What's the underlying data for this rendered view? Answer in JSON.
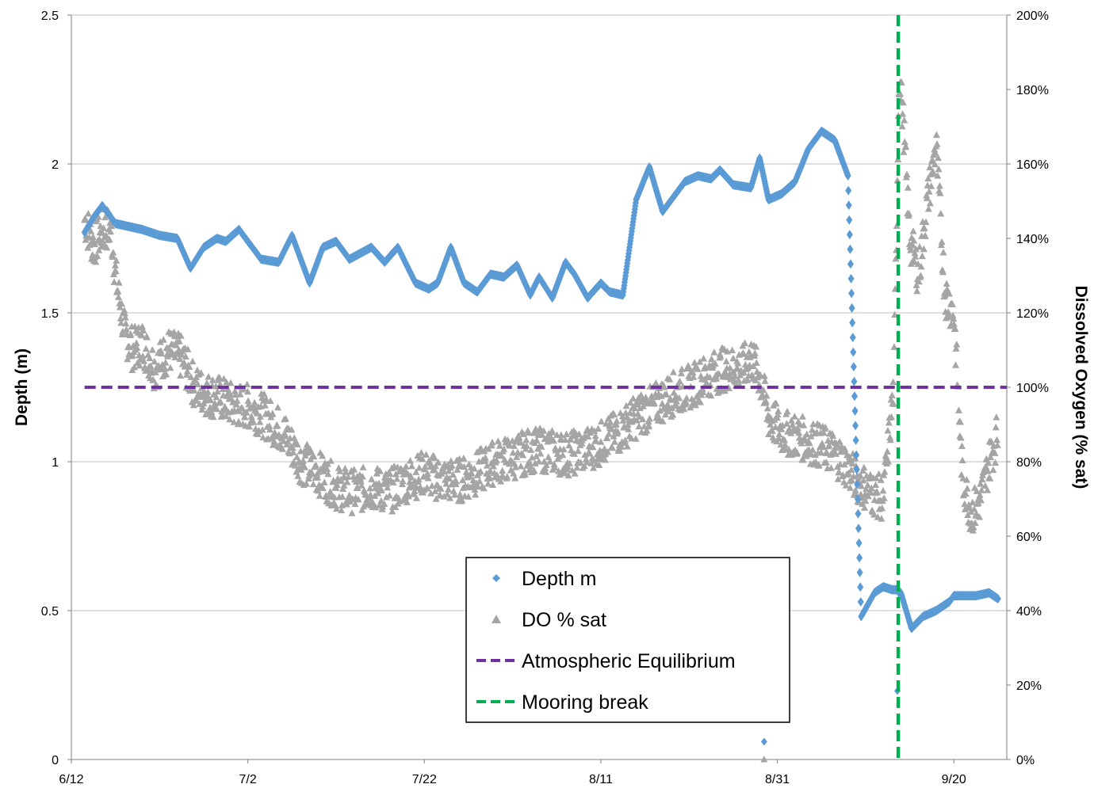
{
  "chart_data": {
    "type": "scatter",
    "xlabel": "",
    "ylabel": "Depth (m)",
    "y2label": "Dissolved Oxygen (% sat)",
    "x_tick_labels": [
      "6/12",
      "7/2",
      "7/22",
      "8/11",
      "8/31",
      "9/20"
    ],
    "x_tick_days": [
      0,
      20,
      40,
      60,
      80,
      100
    ],
    "xlim_days": [
      0,
      106
    ],
    "ylim": [
      0,
      2.5
    ],
    "y_ticks": [
      "0",
      "0.5",
      "1",
      "1.5",
      "2",
      "2.5"
    ],
    "y2lim": [
      0,
      200
    ],
    "y2_ticks": [
      "0%",
      "20%",
      "40%",
      "60%",
      "80%",
      "100%",
      "120%",
      "140%",
      "160%",
      "180%",
      "200%"
    ],
    "grid": "horizontal",
    "legend_position": "center-bottom",
    "colors": {
      "depth": "#5B9BD5",
      "do": "#A5A5A5",
      "equilibrium": "#7030A0",
      "mooring": "#00B050"
    },
    "series": [
      {
        "name": "Depth m",
        "axis": "left",
        "marker": "diamond",
        "x_days": [
          1.5,
          2.5,
          3.5,
          5,
          6.5,
          8,
          10,
          12,
          13.5,
          15,
          16.5,
          17.5,
          19,
          20.5,
          21.5,
          23.5,
          25,
          27,
          28.5,
          30,
          31.5,
          34,
          35.5,
          37,
          39,
          40.5,
          41.5,
          43,
          44.5,
          46,
          47.5,
          49,
          50.5,
          52,
          53,
          54.5,
          56,
          57,
          58.5,
          60,
          61,
          62.5,
          64,
          65.5,
          67,
          67.5,
          68,
          69.5,
          71,
          72.5,
          73.5,
          75,
          77,
          78,
          79,
          80.5,
          82,
          83.5,
          85,
          86.5,
          88,
          89.5,
          91,
          92,
          93,
          94,
          94.6,
          95.2,
          96.5,
          98,
          99.5,
          100,
          101,
          102.5,
          104,
          105
        ],
        "values": [
          1.77,
          1.82,
          1.86,
          1.8,
          1.79,
          1.78,
          1.76,
          1.75,
          1.65,
          1.72,
          1.75,
          1.74,
          1.78,
          1.72,
          1.68,
          1.67,
          1.76,
          1.6,
          1.72,
          1.74,
          1.68,
          1.72,
          1.67,
          1.72,
          1.6,
          1.58,
          1.6,
          1.72,
          1.6,
          1.57,
          1.63,
          1.62,
          1.66,
          1.56,
          1.62,
          1.55,
          1.67,
          1.63,
          1.55,
          1.6,
          1.57,
          1.56,
          1.88,
          1.99,
          1.84,
          1.86,
          1.88,
          1.94,
          1.96,
          1.95,
          1.98,
          1.93,
          1.92,
          2.02,
          1.88,
          1.9,
          1.94,
          2.05,
          2.11,
          2.08,
          1.96,
          0.48,
          0.56,
          0.58,
          0.57,
          0.56,
          0.5,
          0.44,
          0.48,
          0.5,
          0.53,
          0.55,
          0.55,
          0.55,
          0.56,
          0.54
        ],
        "outliers_x_days": [
          78.5,
          93.6
        ],
        "outliers_values": [
          0.06,
          0.23
        ]
      },
      {
        "name": "DO % sat",
        "axis": "right",
        "marker": "triangle",
        "x_days": [
          1.5,
          2.5,
          3.5,
          4.5,
          5,
          6,
          7,
          8,
          9.5,
          11,
          12.5,
          14,
          15.5,
          17,
          18.5,
          20,
          22,
          24,
          26,
          28,
          30,
          32,
          34,
          36,
          38,
          40,
          42,
          44,
          46,
          48,
          50,
          52,
          54,
          56,
          58,
          60,
          62,
          64,
          66,
          68,
          70,
          72,
          74,
          76,
          77,
          78,
          79,
          80.5,
          82,
          84,
          86,
          87.5,
          89,
          90.5,
          92,
          93.2,
          93.8,
          94.3,
          95,
          96,
          97,
          98,
          99,
          100,
          101,
          102,
          103,
          104,
          105
        ],
        "values": [
          145,
          138,
          142,
          143,
          130,
          115,
          110,
          112,
          105,
          110,
          108,
          100,
          98,
          97,
          95,
          95,
          92,
          88,
          80,
          77,
          73,
          72,
          73,
          72,
          75,
          77,
          75,
          75,
          77,
          80,
          81,
          83,
          83,
          82,
          83,
          85,
          88,
          92,
          95,
          98,
          100,
          103,
          105,
          105,
          108,
          103,
          92,
          88,
          87,
          85,
          83,
          80,
          75,
          72,
          70,
          100,
          185,
          170,
          140,
          130,
          150,
          165,
          125,
          120,
          75,
          66,
          70,
          80,
          88
        ],
        "scatter_band": 6,
        "outliers_x_days": [
          78.5
        ],
        "outliers_values": [
          0
        ]
      },
      {
        "name": "Atmospheric Equilibrium",
        "axis": "right",
        "style": "dashed",
        "x_days": [
          1.5,
          106
        ],
        "values": [
          100,
          100
        ]
      },
      {
        "name": "Mooring break",
        "axis": "left",
        "style": "dashed-vertical",
        "x_day": 93.7
      }
    ]
  }
}
